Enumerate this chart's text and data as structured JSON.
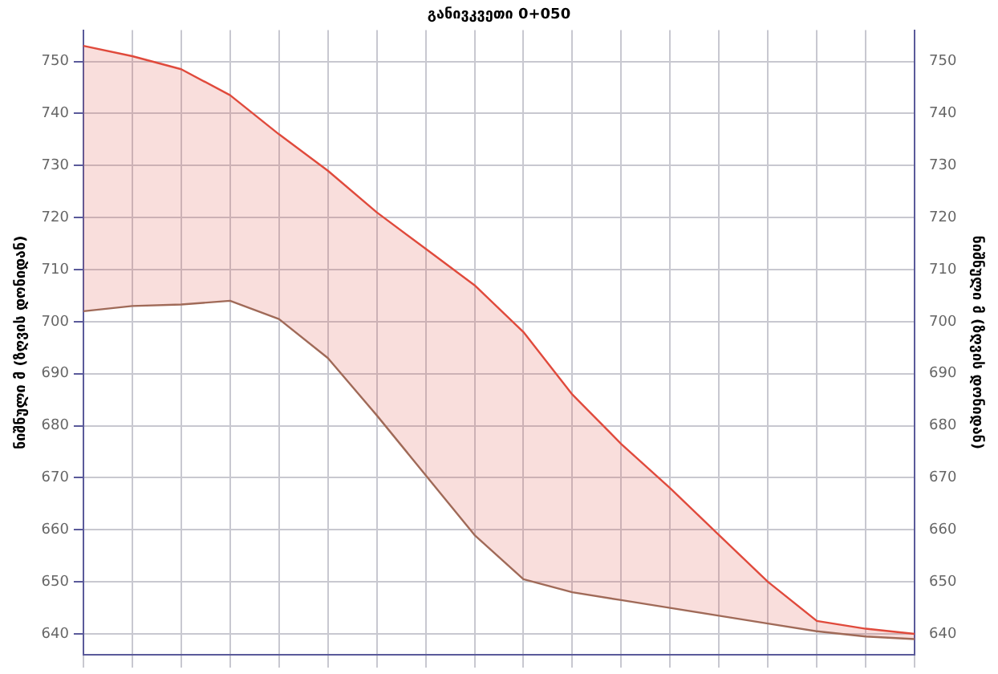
{
  "chart_data": {
    "type": "area",
    "title": "განივკვეთი 0+050",
    "ylabel": "ნიშნული მ (ზღვის დონიდან)",
    "y2label": "ნიშნული მ (ზღვის დონიდან)",
    "categories": [
      null,
      null,
      null,
      null,
      null,
      null,
      null,
      null,
      null,
      null,
      null,
      null,
      null,
      null,
      null,
      null,
      null,
      null
    ],
    "series": [
      {
        "type": "line",
        "color": "#a06a58",
        "values": [
          702,
          703,
          703.3,
          704,
          700.5,
          693,
          682,
          670.5,
          659,
          650.5,
          648,
          646.5,
          645,
          643.5,
          642,
          640.5,
          639.5,
          639
        ]
      },
      {
        "color": "#e04a3c",
        "values": [
          753,
          751,
          748.5,
          743.5,
          736,
          729,
          721,
          714,
          707,
          698,
          686,
          676.5,
          668,
          659,
          650,
          642.5,
          641,
          640
        ]
      }
    ],
    "ylim": [
      636,
      756
    ],
    "yticks": [
      640,
      650,
      660,
      670,
      680,
      690,
      700,
      710,
      720,
      730,
      740,
      750
    ],
    "y2lim": [
      636,
      756
    ],
    "y2ticks": [
      640,
      650,
      660,
      670,
      680,
      690,
      700,
      710,
      720,
      730,
      740,
      750
    ],
    "grid": true,
    "legend": false,
    "marker": "none",
    "tick_labels": "y"
  }
}
